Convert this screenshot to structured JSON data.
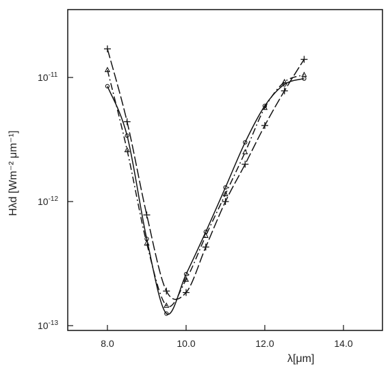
{
  "chart_data": {
    "type": "line",
    "title": "",
    "xlabel": "λ[μm]",
    "ylabel": "Hλd [Wm⁻² μm⁻¹]",
    "xlim": [
      7.0,
      15.0
    ],
    "ylim": [
      1e-13,
      4e-11
    ],
    "yscale": "log",
    "grid": false,
    "legend": "none",
    "x_ticks": [
      "8.0",
      "10.0",
      "12.0",
      "14.0"
    ],
    "y_ticks": [
      {
        "base": "10",
        "exp": "-11",
        "value": 1e-11
      },
      {
        "base": "10",
        "exp": "-12",
        "value": 1e-12
      },
      {
        "base": "10",
        "exp": "-13",
        "value": 1e-13
      }
    ],
    "series": [
      {
        "marker": "plus",
        "dash": "long-dash",
        "x": [
          8.0,
          8.5,
          9.0,
          9.5,
          10.0,
          10.5,
          11.0,
          11.5,
          12.0,
          12.5,
          13.0
        ],
        "y": [
          1.7e-11,
          4.4e-12,
          7.8e-13,
          1.9e-13,
          1.85e-13,
          4.3e-13,
          1e-12,
          2e-12,
          4.1e-12,
          7.8e-12,
          1.4e-11
        ]
      },
      {
        "marker": "triangle",
        "dash": "dash-dot",
        "x": [
          8.0,
          8.5,
          9.0,
          9.5,
          10.0,
          10.5,
          11.0,
          11.5,
          12.0,
          12.5,
          13.0
        ],
        "y": [
          1.15e-11,
          2.6e-12,
          4.6e-13,
          1.45e-13,
          2.35e-13,
          5.3e-13,
          1.15e-12,
          2.5e-12,
          5.7e-12,
          9.2e-12,
          1.05e-11
        ]
      },
      {
        "marker": "circle",
        "dash": "solid",
        "x": [
          8.0,
          8.5,
          9.0,
          9.5,
          10.0,
          10.5,
          11.0,
          11.5,
          12.0,
          12.5,
          13.0
        ],
        "y": [
          8.5e-12,
          3.4e-12,
          5e-13,
          1.25e-13,
          2.6e-13,
          5.7e-13,
          1.3e-12,
          3e-12,
          5.9e-12,
          8.8e-12,
          9.8e-12
        ]
      }
    ]
  }
}
